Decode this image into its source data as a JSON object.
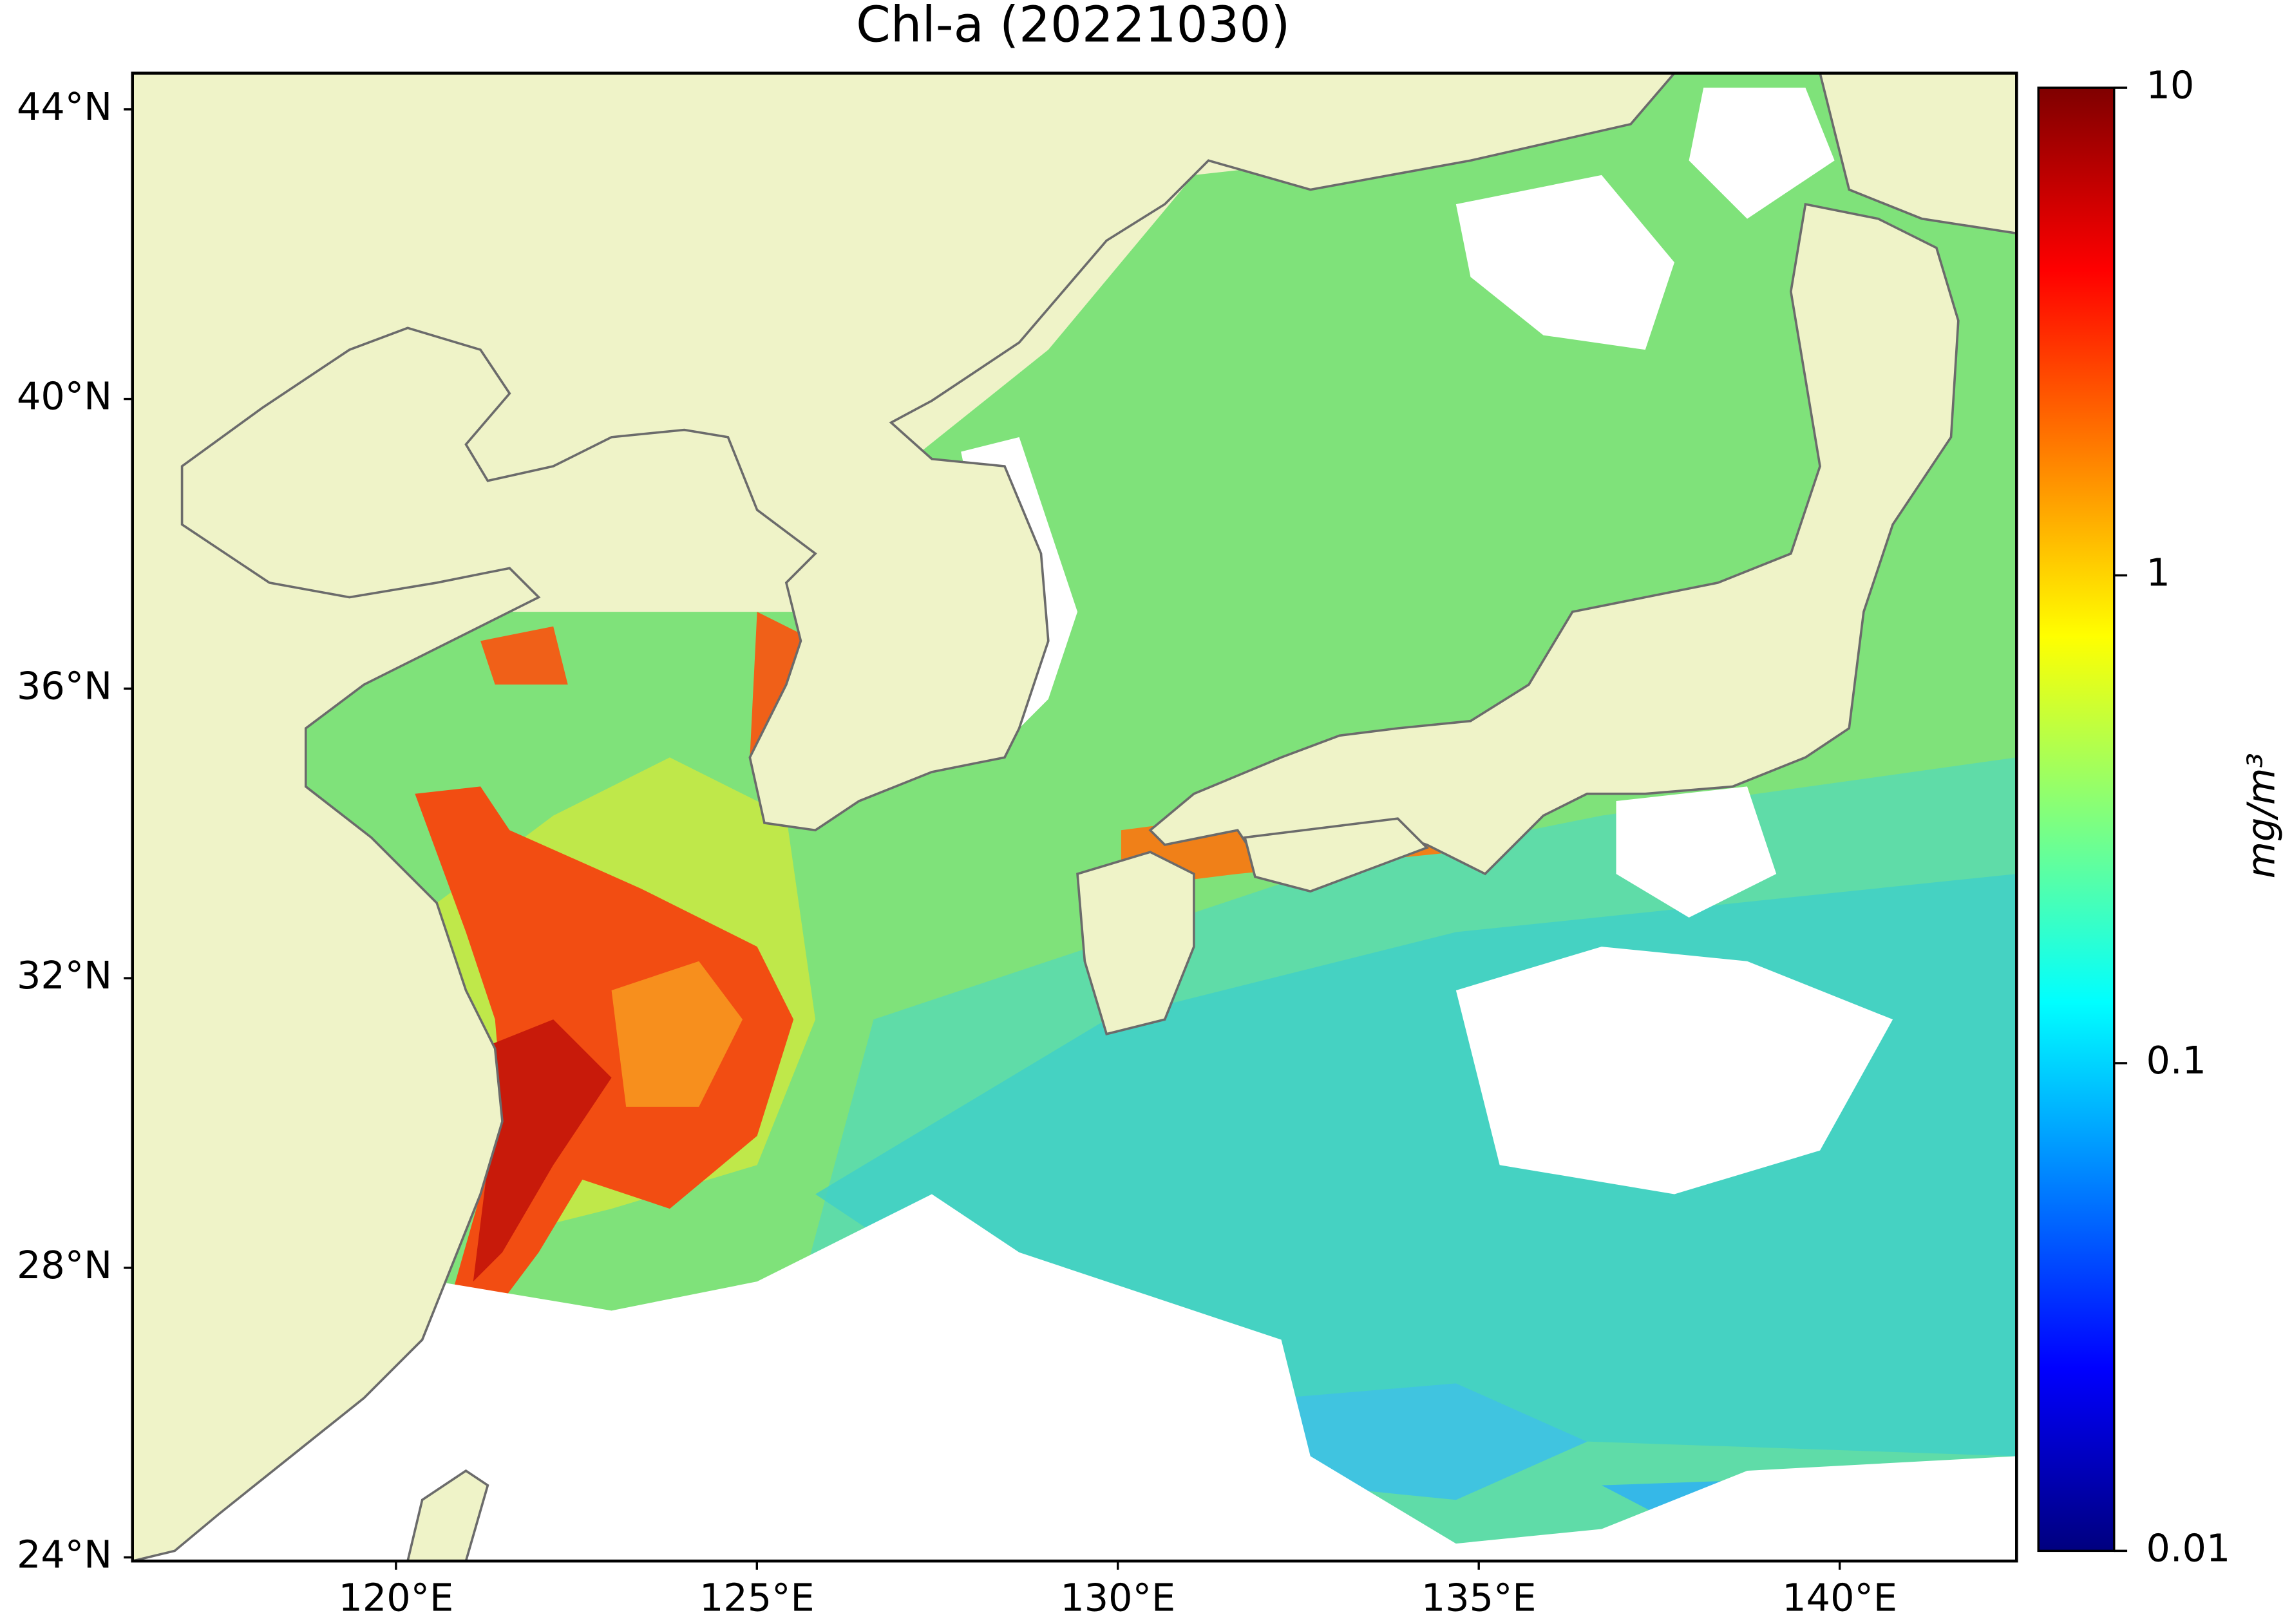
{
  "chart_data": {
    "type": "map",
    "title": "Chl-a (20221030)",
    "xlim": [
      116.35,
      142.45
    ],
    "ylim": [
      23.95,
      44.5
    ],
    "xticks": [
      {
        "value": 120,
        "label": "120°E"
      },
      {
        "value": 125,
        "label": "125°E"
      },
      {
        "value": 130,
        "label": "130°E"
      },
      {
        "value": 135,
        "label": "135°E"
      },
      {
        "value": 140,
        "label": "140°E"
      }
    ],
    "yticks": [
      {
        "value": 24,
        "label": "24°N"
      },
      {
        "value": 28,
        "label": "28°N"
      },
      {
        "value": 32,
        "label": "32°N"
      },
      {
        "value": 36,
        "label": "36°N"
      },
      {
        "value": 40,
        "label": "40°N"
      },
      {
        "value": 44,
        "label": "44°N"
      }
    ],
    "land_color": "#eff3c8",
    "colorbar": {
      "label": "mg/m³",
      "colormap": "jet",
      "scale": "log",
      "lim": [
        0.01,
        10
      ],
      "ticks": [
        10,
        1,
        0.1,
        0.01
      ]
    }
  }
}
